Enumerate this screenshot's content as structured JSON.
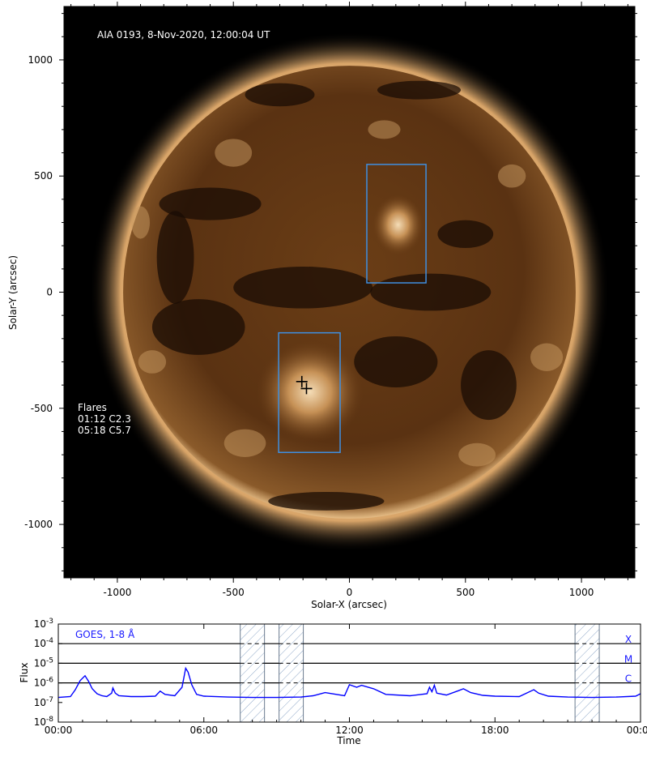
{
  "image_panel": {
    "label": "AIA 0193, 8-Nov-2020, 12:00:04 UT",
    "xlabel": "Solar-X (arcsec)",
    "ylabel": "Solar-Y (arcsec)",
    "xlim": [
      -1230,
      1230
    ],
    "ylim": [
      -1230,
      1230
    ],
    "xticks": [
      "-1000",
      "-500",
      "0",
      "500",
      "1000"
    ],
    "yticks": [
      "1000",
      "500",
      "0",
      "-500",
      "-1000"
    ],
    "flares_title": "Flares",
    "flares": [
      "01:12 C2.3",
      "05:18 C5.7"
    ],
    "colors": {
      "disk": "#7a4a1e",
      "corona": "#c89a62",
      "box": "#3f8fe0"
    }
  },
  "chart_data": {
    "type": "line",
    "title": "GOES, 1-8 Å",
    "xlabel": "Time",
    "ylabel": "Flux",
    "xlim": [
      0,
      24
    ],
    "ylim": [
      1e-08,
      0.001
    ],
    "yscale": "log",
    "xticks": [
      "00:00",
      "06:00",
      "12:00",
      "18:00",
      "00:00"
    ],
    "yticks": [
      "10-3",
      "10-4",
      "10-5",
      "10-6",
      "10-7",
      "10-8"
    ],
    "class_labels": [
      "X",
      "M",
      "C"
    ],
    "class_levels": [
      0.0001,
      1e-05,
      1e-06
    ],
    "shaded_intervals": [
      [
        7.5,
        8.5
      ],
      [
        9.1,
        10.1
      ],
      [
        21.3,
        22.3
      ]
    ],
    "series": [
      {
        "color": "#0000ff",
        "x": [
          0,
          0.5,
          0.7,
          0.9,
          1.1,
          1.25,
          1.4,
          1.6,
          1.8,
          2.0,
          2.2,
          2.25,
          2.35,
          2.5,
          3.0,
          3.5,
          4.0,
          4.2,
          4.4,
          4.8,
          5.1,
          5.25,
          5.35,
          5.5,
          5.7,
          6.0,
          7.0,
          8.0,
          9.0,
          10.0,
          10.5,
          11.0,
          11.8,
          12.0,
          12.3,
          12.5,
          13.0,
          13.5,
          14.5,
          15.2,
          15.3,
          15.4,
          15.5,
          15.6,
          16.0,
          16.5,
          16.7,
          17.0,
          17.5,
          18.0,
          19.0,
          19.6,
          19.8,
          20.2,
          21.0,
          22.0,
          23.0,
          23.8,
          24.0
        ],
        "y": [
          1.8e-07,
          2e-07,
          4.5e-07,
          1.3e-06,
          2.3e-06,
          1.2e-06,
          5e-07,
          2.8e-07,
          2.2e-07,
          2e-07,
          3e-07,
          5.5e-07,
          3e-07,
          2.2e-07,
          2e-07,
          2e-07,
          2.1e-07,
          3.8e-07,
          2.6e-07,
          2.2e-07,
          6e-07,
          5.6e-06,
          3.5e-06,
          8e-07,
          2.6e-07,
          2.1e-07,
          1.9e-07,
          1.8e-07,
          1.8e-07,
          1.9e-07,
          2.2e-07,
          3.2e-07,
          2.2e-07,
          8e-07,
          6e-07,
          7.5e-07,
          5e-07,
          2.6e-07,
          2.2e-07,
          2.8e-07,
          6e-07,
          3.5e-07,
          7.5e-07,
          3e-07,
          2.4e-07,
          4e-07,
          5e-07,
          3.2e-07,
          2.3e-07,
          2.1e-07,
          2e-07,
          4.5e-07,
          3e-07,
          2.1e-07,
          1.9e-07,
          1.8e-07,
          1.9e-07,
          2.1e-07,
          2.8e-07
        ]
      }
    ]
  }
}
